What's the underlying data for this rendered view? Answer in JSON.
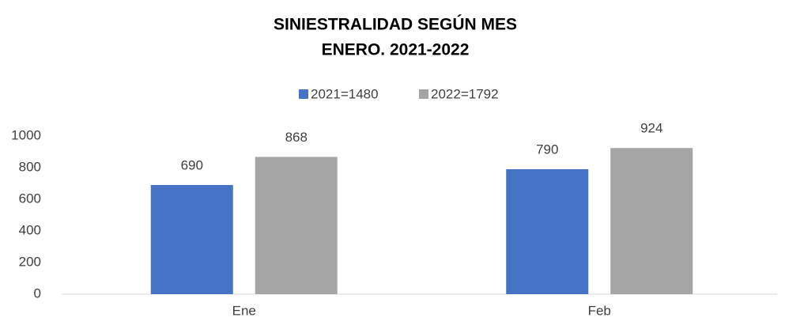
{
  "chart_data": {
    "type": "bar",
    "title": "SINIESTRALIDAD SEGÚN MES",
    "subtitle": "ENERO. 2021-2022",
    "categories": [
      "Ene",
      "Feb"
    ],
    "series": [
      {
        "name": "2021=1480",
        "color": "#4472c4",
        "values": [
          690,
          790
        ]
      },
      {
        "name": "2022=1792",
        "color": "#a5a5a5",
        "values": [
          868,
          924
        ]
      }
    ],
    "ylim": [
      0,
      1000
    ],
    "yticks": [
      0,
      200,
      400,
      600,
      800,
      1000
    ],
    "grid": false,
    "legend": "top",
    "data_labels": true
  }
}
